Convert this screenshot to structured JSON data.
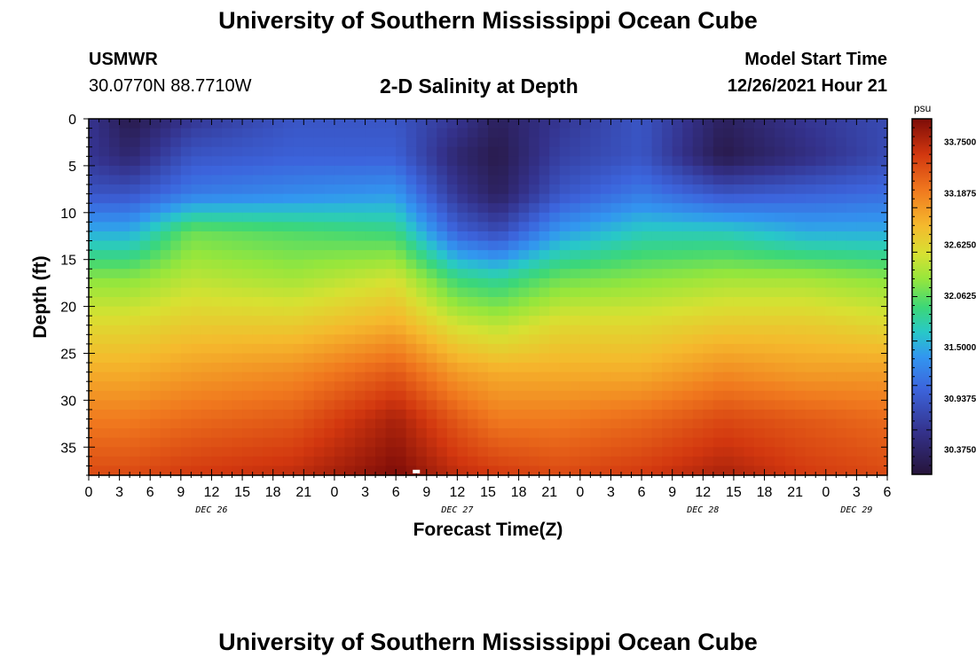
{
  "header": {
    "title": "University of Southern Mississippi Ocean Cube",
    "station": "USMWR",
    "coords": "30.0770N  88.7710W",
    "subtitle": "2-D Salinity at Depth",
    "model_start_label": "Model Start Time",
    "model_start_time": "12/26/2021 Hour 21"
  },
  "footer": {
    "title": "University of Southern Mississippi Ocean Cube"
  },
  "chart_data": {
    "type": "heatmap",
    "title": "2-D Salinity at Depth",
    "xlabel": "Forecast Time(Z)",
    "ylabel": "Depth (ft)",
    "x_range_hours": [
      0,
      78
    ],
    "ylim": [
      0,
      38
    ],
    "x_ticks": [
      "0",
      "3",
      "6",
      "9",
      "12",
      "15",
      "18",
      "21",
      "0",
      "3",
      "6",
      "9",
      "12",
      "15",
      "18",
      "21",
      "0",
      "3",
      "6",
      "9",
      "12",
      "15",
      "18",
      "21",
      "0",
      "3",
      "6"
    ],
    "y_ticks": [
      "0",
      "5",
      "10",
      "15",
      "20",
      "25",
      "30",
      "35"
    ],
    "day_labels": [
      {
        "label": "DEC 26",
        "hour": 12
      },
      {
        "label": "DEC 27",
        "hour": 36
      },
      {
        "label": "DEC 28",
        "hour": 60
      },
      {
        "label": "DEC 29",
        "hour": 75
      }
    ],
    "colorbar": {
      "unit": "psu",
      "min": 30.1,
      "max": 34.0,
      "labels": [
        "33.7500",
        "33.1875",
        "32.6250",
        "32.0625",
        "31.5000",
        "30.9375",
        "30.3750"
      ],
      "label_values": [
        33.75,
        33.1875,
        32.625,
        32.0625,
        31.5,
        30.9375,
        30.375
      ]
    },
    "marker": {
      "hour": 32,
      "depth_ft": 37.7
    },
    "profile_columns": [
      {
        "hour": 0,
        "values_by_depth": [
          30.6,
          30.6,
          30.9,
          31.5,
          32.2,
          32.6,
          32.9,
          33.2,
          33.5
        ]
      },
      {
        "hour": 4,
        "values_by_depth": [
          30.2,
          30.4,
          30.9,
          31.5,
          32.2,
          32.6,
          32.9,
          33.2,
          33.5
        ]
      },
      {
        "hour": 10,
        "values_by_depth": [
          30.6,
          30.9,
          31.2,
          32.1,
          32.4,
          32.7,
          33.0,
          33.3,
          33.6
        ]
      },
      {
        "hour": 20,
        "values_by_depth": [
          30.9,
          31.0,
          31.3,
          32.0,
          32.3,
          32.7,
          33.1,
          33.4,
          33.7
        ]
      },
      {
        "hour": 30,
        "values_by_depth": [
          30.9,
          31.0,
          31.4,
          31.9,
          32.5,
          32.9,
          33.4,
          33.8,
          34.0
        ]
      },
      {
        "hour": 36,
        "values_by_depth": [
          30.6,
          30.4,
          30.6,
          31.0,
          31.9,
          32.5,
          33.0,
          33.4,
          33.7
        ]
      },
      {
        "hour": 40,
        "values_by_depth": [
          30.3,
          30.2,
          30.3,
          30.8,
          31.8,
          32.4,
          32.9,
          33.2,
          33.6
        ]
      },
      {
        "hour": 46,
        "values_by_depth": [
          30.6,
          30.7,
          30.9,
          31.4,
          32.1,
          32.6,
          32.9,
          33.2,
          33.5
        ]
      },
      {
        "hour": 54,
        "values_by_depth": [
          30.9,
          30.9,
          31.2,
          31.7,
          32.2,
          32.6,
          32.9,
          33.3,
          33.6
        ]
      },
      {
        "hour": 62,
        "values_by_depth": [
          30.3,
          30.2,
          30.9,
          31.7,
          32.3,
          32.7,
          33.1,
          33.5,
          33.8
        ]
      },
      {
        "hour": 70,
        "values_by_depth": [
          30.6,
          30.5,
          31.0,
          31.5,
          32.3,
          32.7,
          33.0,
          33.4,
          33.6
        ]
      },
      {
        "hour": 78,
        "values_by_depth": [
          30.8,
          30.8,
          31.1,
          31.5,
          32.2,
          32.6,
          33.0,
          33.3,
          33.5
        ]
      }
    ],
    "profile_depths_ft": [
      0,
      4,
      8,
      12,
      17,
      22,
      27,
      32,
      38
    ]
  }
}
